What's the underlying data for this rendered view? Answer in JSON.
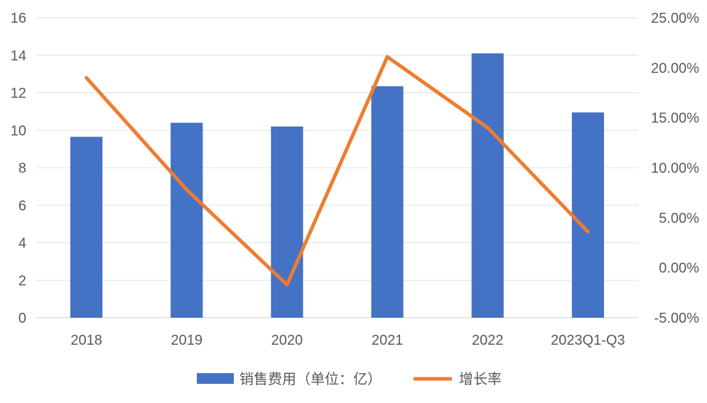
{
  "chart_data": {
    "type": "bar",
    "categories": [
      "2018",
      "2019",
      "2020",
      "2021",
      "2022",
      "2023Q1-Q3"
    ],
    "series": [
      {
        "name": "销售费用（单位：亿）",
        "type": "bar",
        "axis": "left",
        "color": "#4472C4",
        "values": [
          9.65,
          10.4,
          10.2,
          12.35,
          14.1,
          10.95
        ]
      },
      {
        "name": "增长率",
        "type": "line",
        "axis": "right",
        "color": "#ED7D31",
        "values": [
          0.19,
          0.078,
          -0.017,
          0.211,
          0.14,
          0.036
        ]
      }
    ],
    "y_left": {
      "ylim": [
        0,
        16
      ],
      "ticks": [
        0,
        2,
        4,
        6,
        8,
        10,
        12,
        14,
        16
      ],
      "tick_labels": [
        "0",
        "2",
        "4",
        "6",
        "8",
        "10",
        "12",
        "14",
        "16"
      ]
    },
    "y_right": {
      "ylim": [
        -0.05,
        0.25
      ],
      "ticks": [
        -0.05,
        0,
        0.05,
        0.1,
        0.15,
        0.2,
        0.25
      ],
      "tick_labels": [
        "-5.00%",
        "0.00%",
        "5.00%",
        "10.00%",
        "15.00%",
        "20.00%",
        "25.00%"
      ]
    },
    "grid": true,
    "legend_position": "bottom"
  }
}
